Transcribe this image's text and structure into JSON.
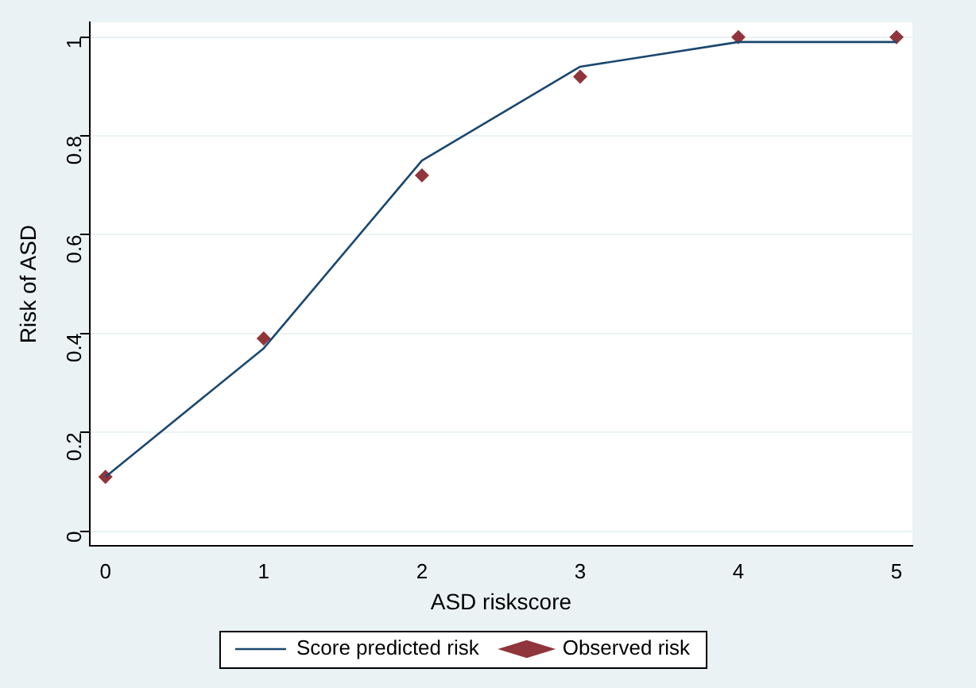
{
  "chart_data": {
    "type": "line",
    "xlabel": "ASD riskscore",
    "ylabel": "Risk of ASD",
    "x": [
      0,
      1,
      2,
      3,
      4,
      5
    ],
    "series": [
      {
        "name": "Score predicted risk",
        "color": "#1a476f",
        "values": [
          0.11,
          0.37,
          0.75,
          0.94,
          0.99,
          0.99
        ],
        "marker": "none"
      },
      {
        "name": "Observed risk",
        "type": "scatter",
        "color": "#90353b",
        "values": [
          0.11,
          0.39,
          0.72,
          0.92,
          1.0,
          1.0
        ],
        "marker": "diamond"
      }
    ],
    "xlim": [
      -0.1,
      5.1
    ],
    "xticks": [
      0,
      1,
      2,
      3,
      4,
      5
    ],
    "ylim": [
      -0.03,
      1.03
    ],
    "yticks": [
      0,
      0.2,
      0.4,
      0.6,
      0.8,
      1
    ],
    "grid": "y",
    "legend": "bottom"
  }
}
